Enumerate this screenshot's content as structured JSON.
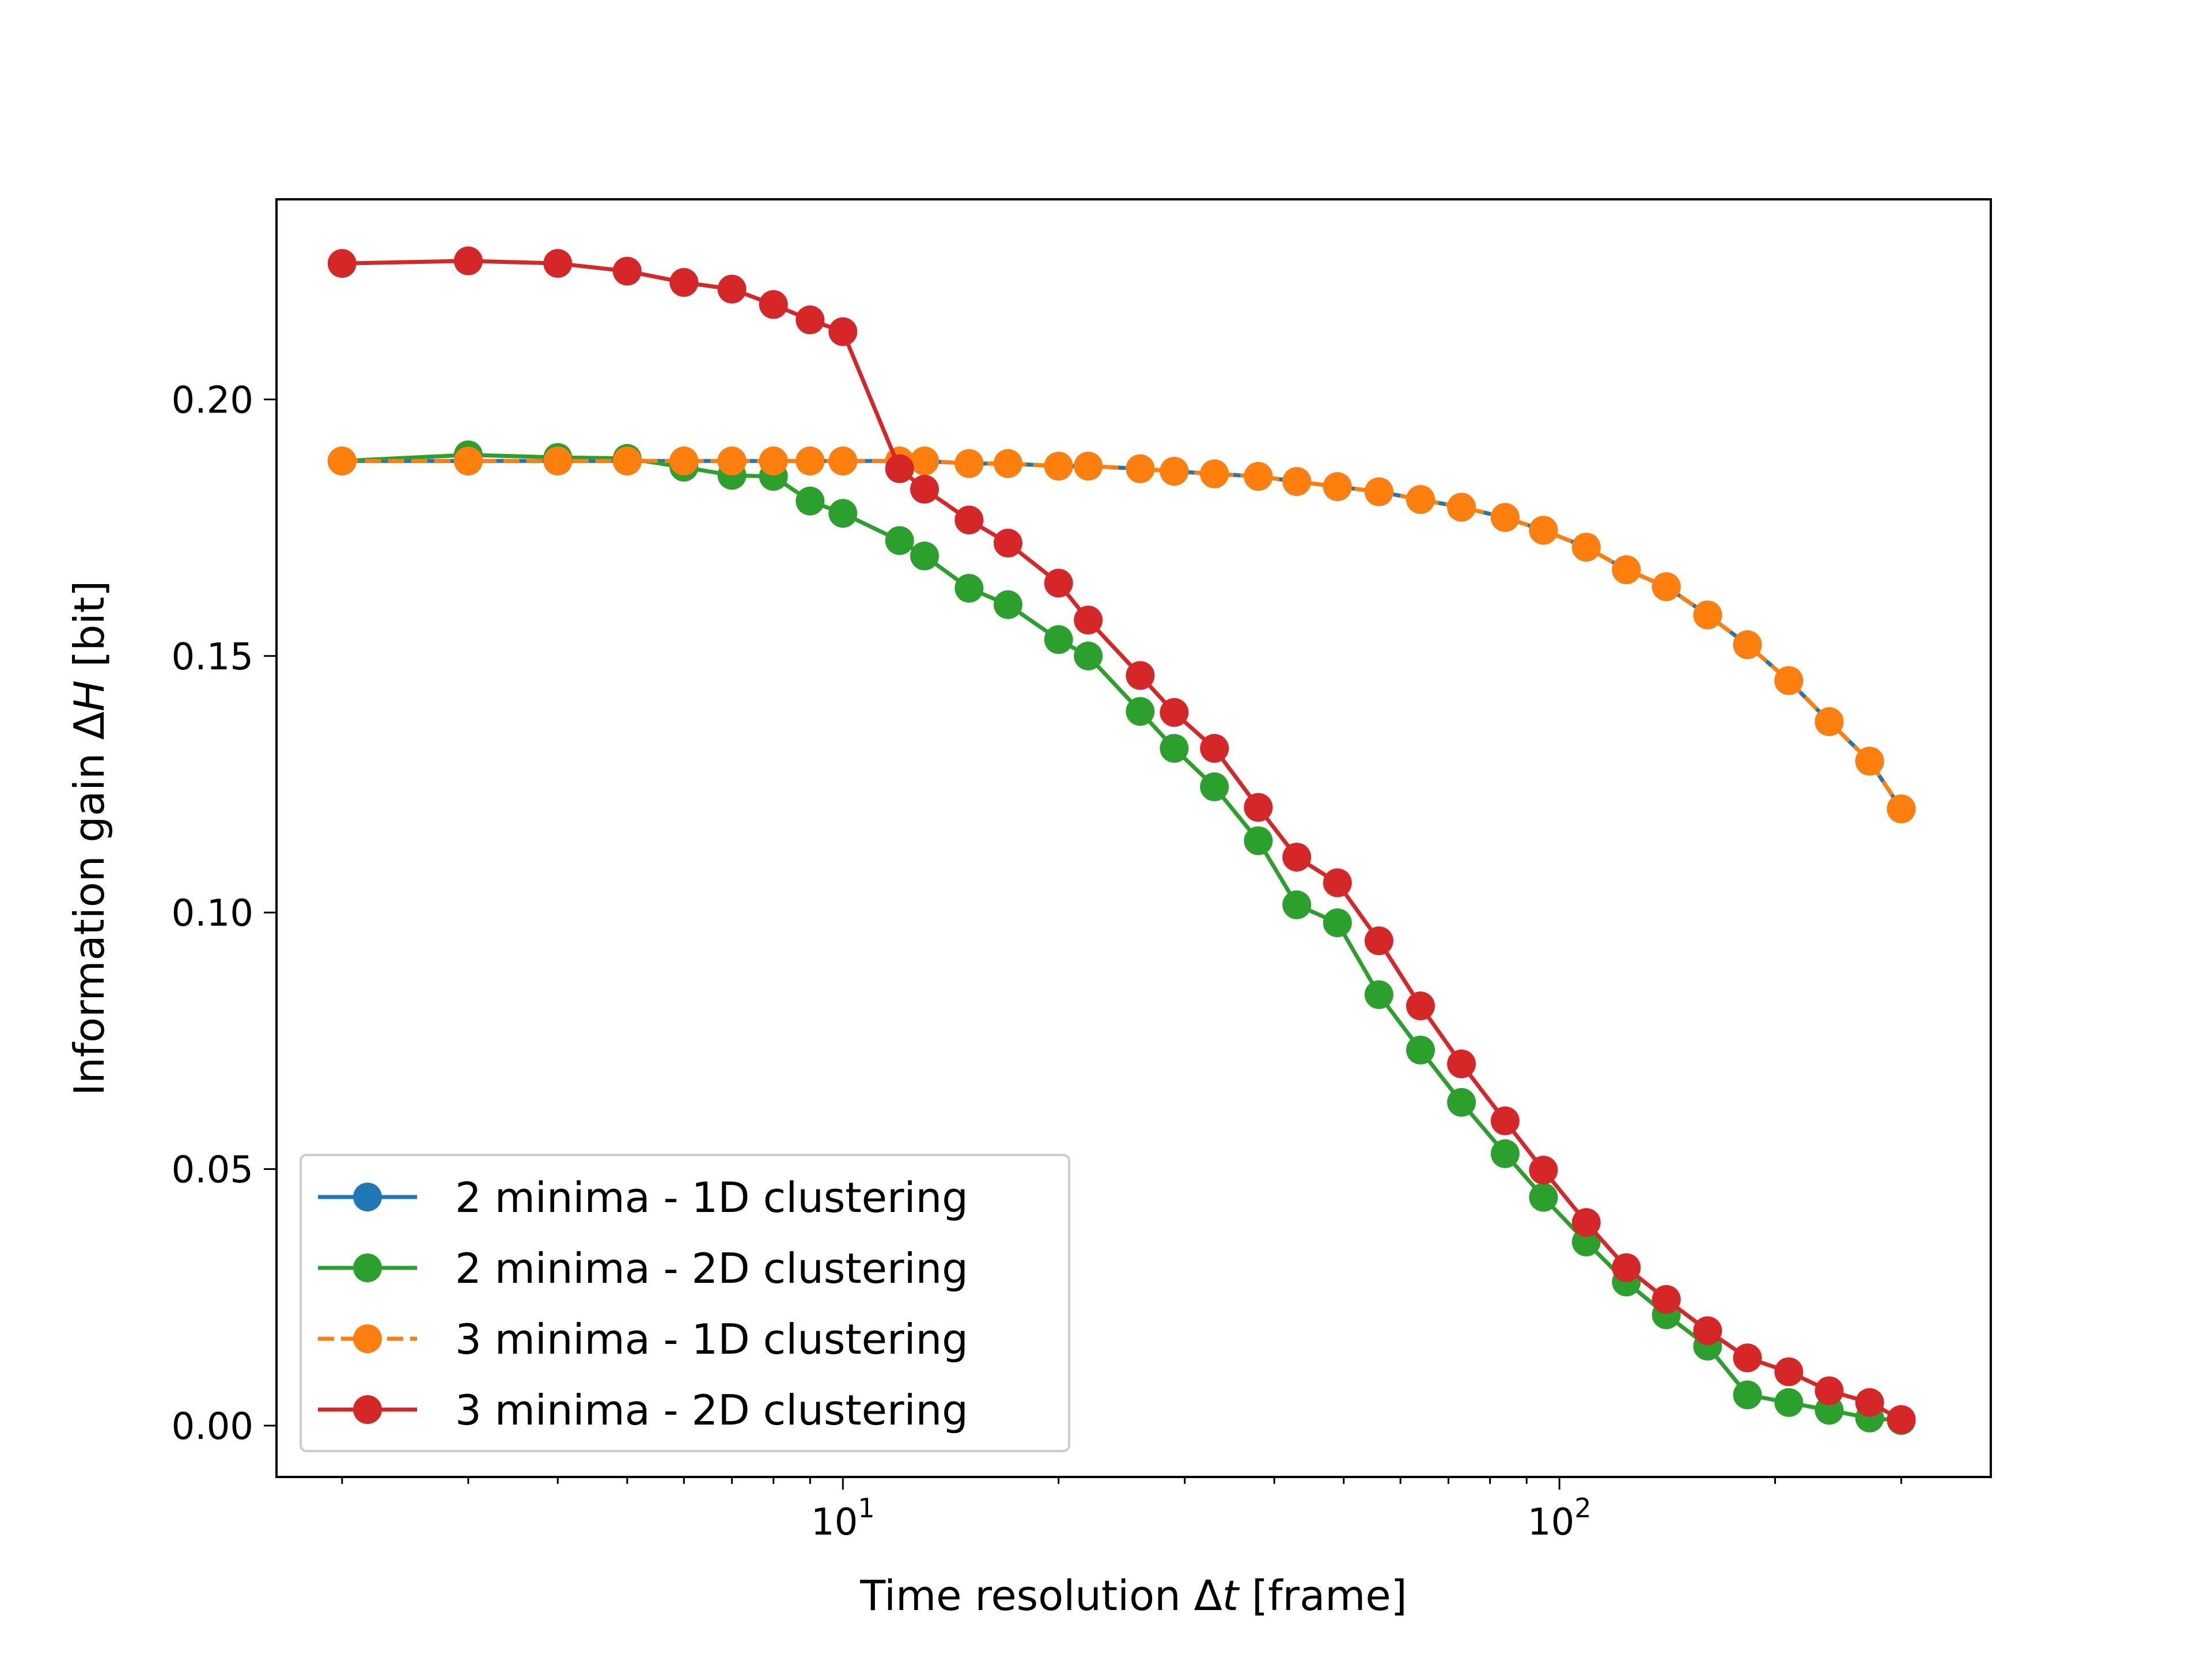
{
  "chart_data": {
    "type": "line",
    "xscale": "log",
    "xlim": [
      1.62,
      400
    ],
    "ylim": [
      -0.01,
      0.239
    ],
    "grid": false,
    "legend_position": "lower-left",
    "xlabel": {
      "prefix": "Time resolution Δ",
      "var": "t",
      "suffix": " [frame]"
    },
    "ylabel": {
      "prefix": "Information gain Δ",
      "var": "H",
      "suffix": " [bit]"
    },
    "x_ticks": [
      {
        "value": 10,
        "base": "10",
        "exp": "1"
      },
      {
        "value": 100,
        "base": "10",
        "exp": "2"
      }
    ],
    "y_ticks": [
      {
        "value": 0.0,
        "label": "0.00"
      },
      {
        "value": 0.05,
        "label": "0.05"
      },
      {
        "value": 0.1,
        "label": "0.10"
      },
      {
        "value": 0.15,
        "label": "0.15"
      },
      {
        "value": 0.2,
        "label": "0.20"
      }
    ],
    "x": [
      2,
      3,
      4,
      5,
      6,
      7,
      8,
      9,
      10,
      12,
      13,
      15,
      17,
      20,
      22,
      26,
      29,
      33,
      38,
      43,
      49,
      56,
      64,
      73,
      84,
      95,
      109,
      124,
      141,
      161,
      183,
      209,
      238,
      271,
      300
    ],
    "series": [
      {
        "name": "2 minima - 1D clustering",
        "color": "#1f77b4",
        "linestyle": "solid",
        "values": [
          0.188,
          0.188,
          0.188,
          0.188,
          0.188,
          0.188,
          0.188,
          0.188,
          0.188,
          0.188,
          0.188,
          0.1875,
          0.1875,
          0.187,
          0.187,
          0.1865,
          0.186,
          0.1855,
          0.185,
          0.184,
          0.183,
          0.182,
          0.1805,
          0.179,
          0.177,
          0.1745,
          0.1712,
          0.1668,
          0.1635,
          0.158,
          0.1522,
          0.1452,
          0.1372,
          0.1295,
          0.1202
        ]
      },
      {
        "name": "2 minima - 2D clustering",
        "color": "#2ca02c",
        "linestyle": "solid",
        "values": [
          0.188,
          0.1892,
          0.1887,
          0.1885,
          0.1868,
          0.1852,
          0.185,
          0.1802,
          0.1778,
          0.1725,
          0.1695,
          0.1632,
          0.16,
          0.1532,
          0.15,
          0.1392,
          0.132,
          0.1245,
          0.114,
          0.1015,
          0.098,
          0.084,
          0.0732,
          0.063,
          0.053,
          0.0445,
          0.0358,
          0.028,
          0.0216,
          0.0155,
          0.006,
          0.0045,
          0.003,
          0.0015,
          0.001
        ]
      },
      {
        "name": "3 minima - 1D clustering",
        "color": "#ff7f0e",
        "linestyle": "dashed",
        "values": [
          0.188,
          0.188,
          0.188,
          0.188,
          0.188,
          0.188,
          0.188,
          0.188,
          0.188,
          0.188,
          0.188,
          0.1875,
          0.1875,
          0.187,
          0.187,
          0.1865,
          0.186,
          0.1855,
          0.185,
          0.184,
          0.183,
          0.182,
          0.1805,
          0.179,
          0.177,
          0.1745,
          0.1712,
          0.1668,
          0.1635,
          0.158,
          0.1522,
          0.1452,
          0.1372,
          0.1295,
          0.1202
        ]
      },
      {
        "name": "3 minima - 2D clustering",
        "color": "#d62728",
        "linestyle": "solid",
        "values": [
          0.2265,
          0.227,
          0.2265,
          0.225,
          0.2228,
          0.2215,
          0.2185,
          0.2155,
          0.2132,
          0.1865,
          0.1825,
          0.1765,
          0.172,
          0.1642,
          0.157,
          0.1462,
          0.139,
          0.132,
          0.1205,
          0.1108,
          0.1058,
          0.0945,
          0.0818,
          0.0705,
          0.0594,
          0.0498,
          0.0396,
          0.0308,
          0.0246,
          0.0185,
          0.0132,
          0.0105,
          0.0068,
          0.0045,
          0.0012
        ]
      }
    ]
  }
}
